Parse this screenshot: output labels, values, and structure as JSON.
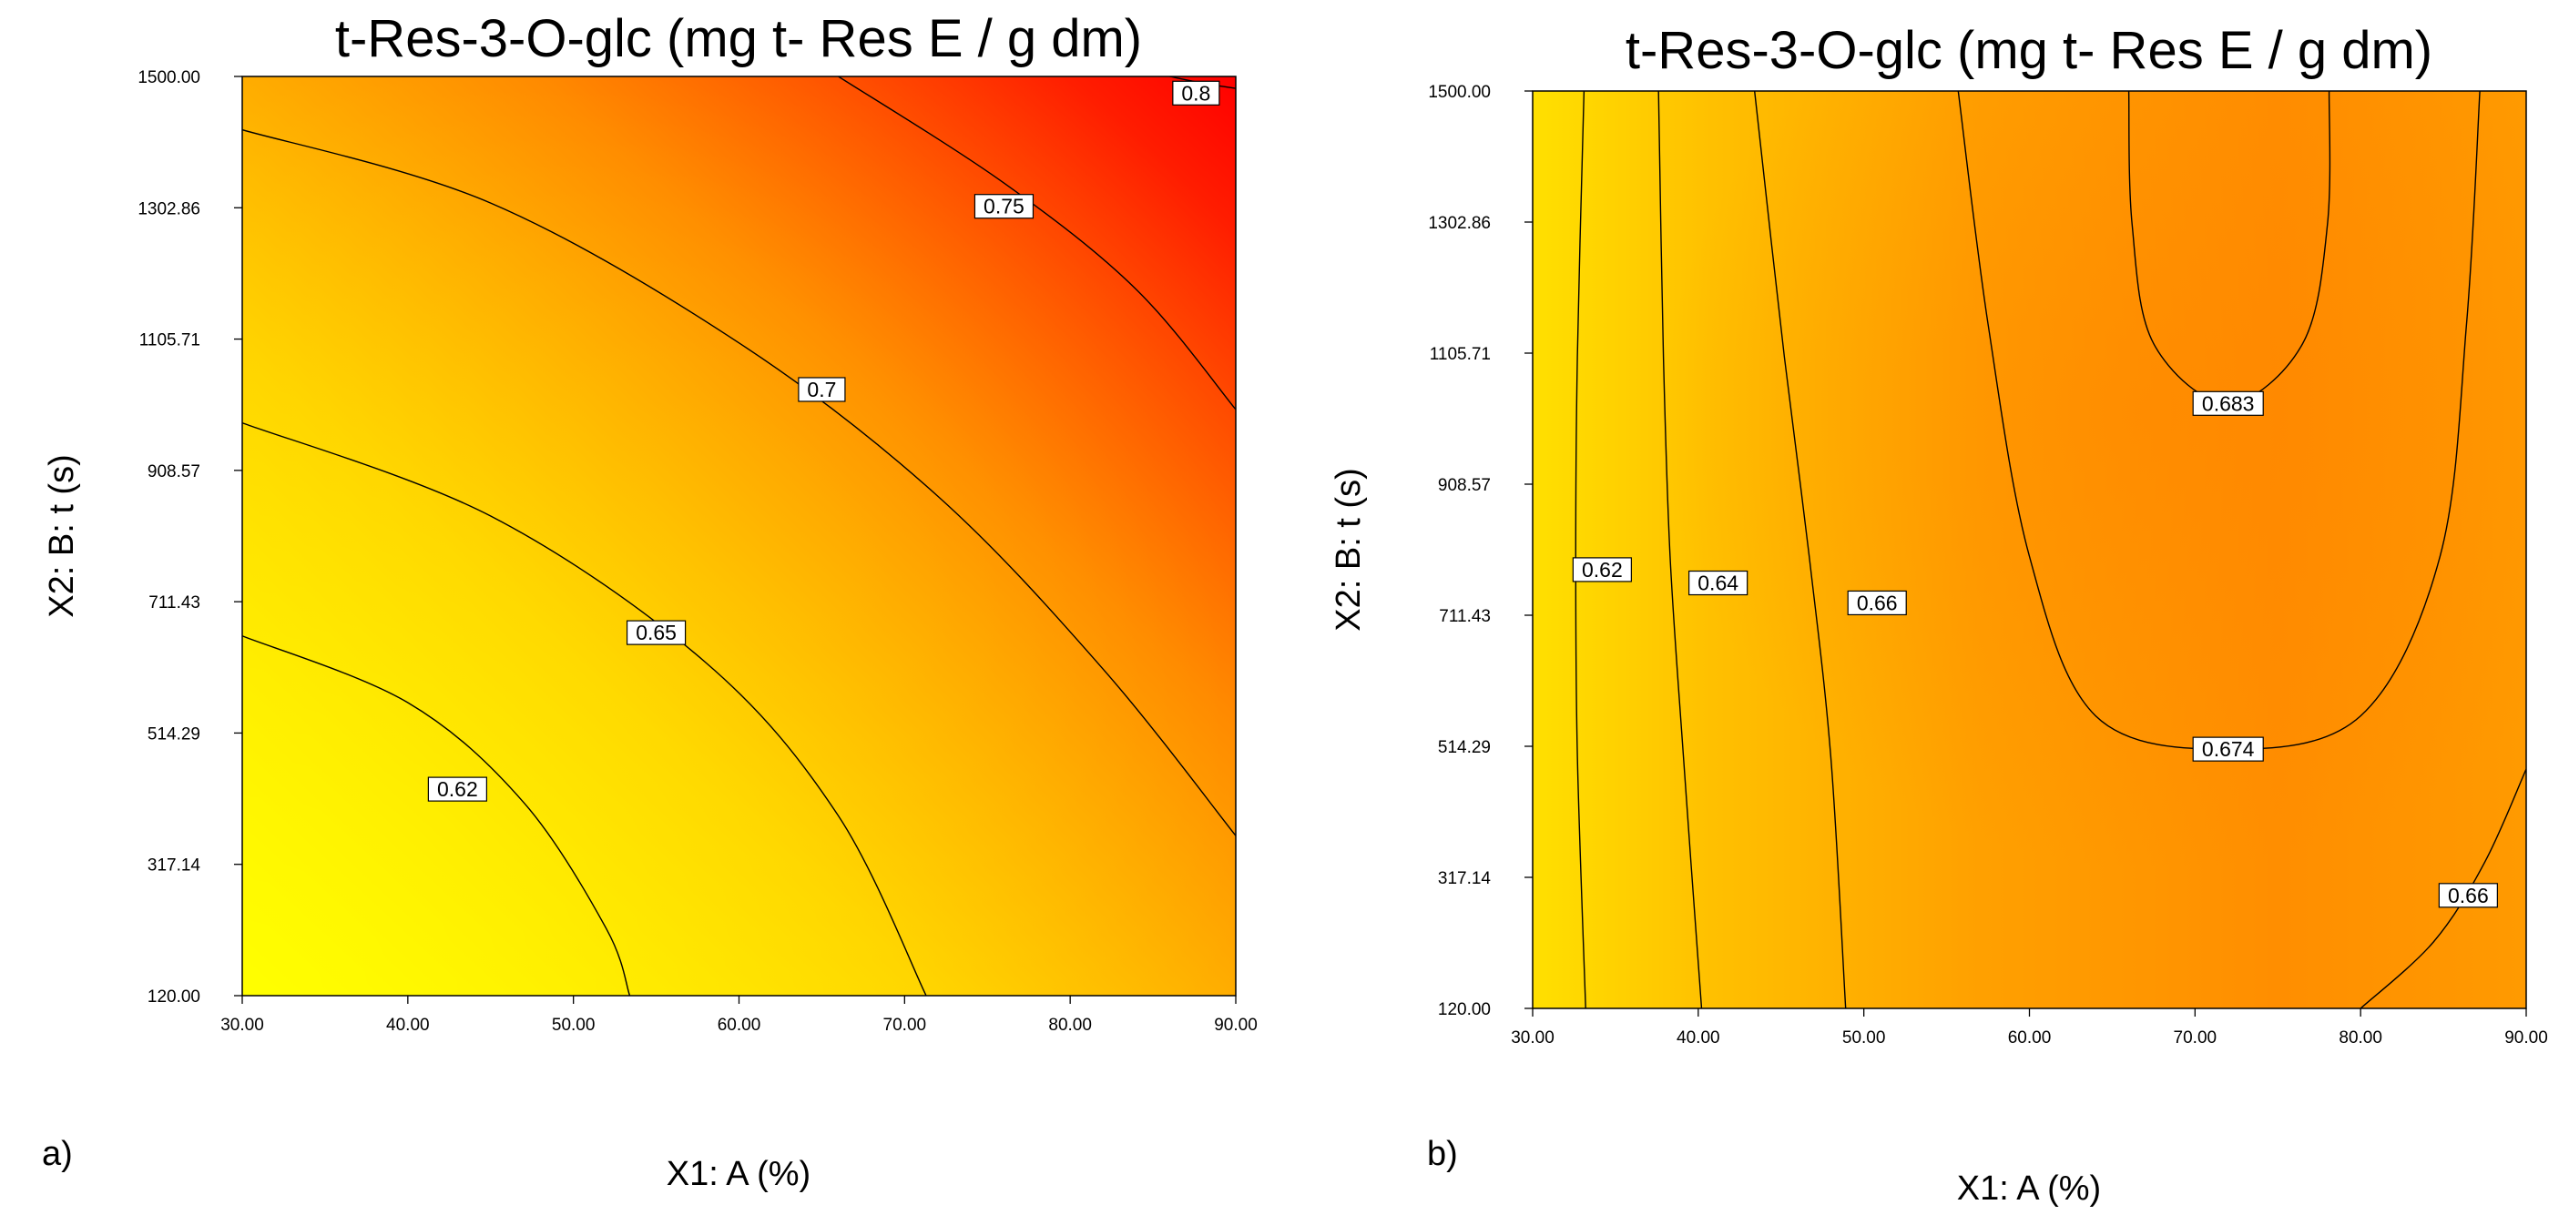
{
  "chart_data": [
    {
      "type": "contour",
      "panel_label": "a)",
      "title": "t-Res-3-O-glc (mg t- Res E / g dm)",
      "xlabel": "X1:  A (%)",
      "ylabel": "X2: B: t (s)",
      "xlim": [
        30,
        90
      ],
      "ylim": [
        120,
        1500
      ],
      "x_ticks": [
        "30.00",
        "40.00",
        "50.00",
        "60.00",
        "70.00",
        "80.00",
        "90.00"
      ],
      "y_ticks": [
        "120.00",
        "317.14",
        "514.29",
        "711.43",
        "908.57",
        "1105.71",
        "1302.86",
        "1500.00"
      ],
      "color_low": "#ffff00",
      "color_high": "#ff0000",
      "contours": [
        {
          "level": "0.62",
          "label_at": [
            43,
            430
          ],
          "points": [
            [
              30,
              660
            ],
            [
              40,
              560
            ],
            [
              47,
              410
            ],
            [
              52,
              220
            ],
            [
              53.4,
              120
            ]
          ]
        },
        {
          "level": "0.65",
          "label_at": [
            55,
            665
          ],
          "points": [
            [
              30,
              980
            ],
            [
              45,
              840
            ],
            [
              58,
              620
            ],
            [
              66,
              390
            ],
            [
              71.3,
              120
            ]
          ]
        },
        {
          "level": "0.7",
          "label_at": [
            65,
            1030
          ],
          "points": [
            [
              30,
              1420
            ],
            [
              45,
              1310
            ],
            [
              60,
              1100
            ],
            [
              72,
              870
            ],
            [
              82,
              610
            ],
            [
              90,
              360
            ]
          ]
        },
        {
          "level": "0.75",
          "label_at": [
            76,
            1305
          ],
          "points": [
            [
              66,
              1500
            ],
            [
              76,
              1340
            ],
            [
              84,
              1180
            ],
            [
              90,
              1000
            ]
          ]
        },
        {
          "level": "0.8",
          "label_at": [
            87.6,
            1475
          ],
          "points": [
            [
              86,
              1500
            ],
            [
              88,
              1490
            ],
            [
              90,
              1482
            ]
          ]
        }
      ]
    },
    {
      "type": "contour",
      "panel_label": "b)",
      "title": "t-Res-3-O-glc (mg t- Res E / g dm)",
      "xlabel": "X1:  A (%)",
      "ylabel": "X2: B: t (s)",
      "xlim": [
        30,
        90
      ],
      "ylim": [
        120,
        1500
      ],
      "x_ticks": [
        "30.00",
        "40.00",
        "50.00",
        "60.00",
        "70.00",
        "80.00",
        "90.00"
      ],
      "y_ticks": [
        "120.00",
        "317.14",
        "514.29",
        "711.43",
        "908.57",
        "1105.71",
        "1302.86",
        "1500.00"
      ],
      "color_low": "#ffe600",
      "color_high": "#ff8a00",
      "contours": [
        {
          "level": "0.62",
          "label_at": [
            34.2,
            780
          ],
          "points": [
            [
              33.1,
              1500
            ],
            [
              32.7,
              1100
            ],
            [
              32.6,
              800
            ],
            [
              32.7,
              500
            ],
            [
              33.2,
              120
            ]
          ]
        },
        {
          "level": "0.64",
          "label_at": [
            41.2,
            760
          ],
          "points": [
            [
              37.6,
              1500
            ],
            [
              37.9,
              1100
            ],
            [
              38.3,
              800
            ],
            [
              39.1,
              500
            ],
            [
              40.2,
              120
            ]
          ]
        },
        {
          "level": "0.66",
          "label_at": [
            50.8,
            730
          ],
          "points": [
            [
              43.4,
              1500
            ],
            [
              45.2,
              1100
            ],
            [
              46.7,
              800
            ],
            [
              48.0,
              500
            ],
            [
              48.9,
              120
            ]
          ]
        },
        {
          "level": "0.674",
          "label_at": [
            72,
            510
          ],
          "points": [
            [
              55.7,
              1500
            ],
            [
              57.5,
              1150
            ],
            [
              60,
              800
            ],
            [
              64,
              560
            ],
            [
              72,
              510
            ],
            [
              80,
              560
            ],
            [
              84.8,
              800
            ],
            [
              86.4,
              1150
            ],
            [
              87.2,
              1500
            ]
          ]
        },
        {
          "level": "0.683",
          "label_at": [
            72,
            1030
          ],
          "points": [
            [
              66,
              1500
            ],
            [
              66.2,
              1300
            ],
            [
              67.5,
              1120
            ],
            [
              72,
              1030
            ],
            [
              76.5,
              1120
            ],
            [
              78,
              1300
            ],
            [
              78.1,
              1500
            ]
          ]
        },
        {
          "level": "0.66",
          "label_at": [
            86.5,
            290
          ],
          "points": [
            [
              80,
              120
            ],
            [
              84.4,
              220
            ],
            [
              87.5,
              340
            ],
            [
              90,
              480
            ]
          ]
        }
      ]
    }
  ]
}
